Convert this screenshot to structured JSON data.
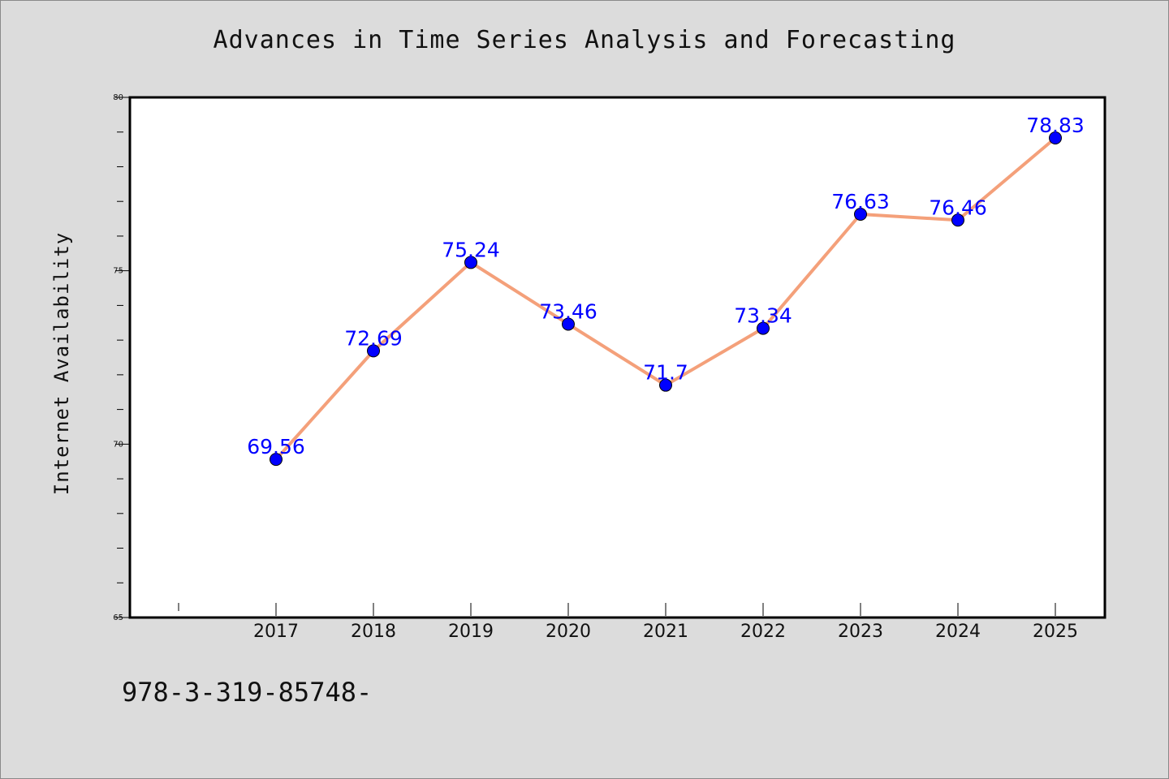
{
  "title": "Advances in Time Series Analysis and Forecasting",
  "footer_text": "978-3-319-85748-",
  "chart_data": {
    "type": "line",
    "title": "Advances in Time Series Analysis and Forecasting",
    "xlabel": "",
    "ylabel": "Internet Availability",
    "categories": [
      "2017",
      "2018",
      "2019",
      "2020",
      "2021",
      "2022",
      "2023",
      "2024",
      "2025"
    ],
    "series": [
      {
        "values": [
          69.56,
          72.69,
          75.24,
          73.46,
          71.7,
          73.34,
          76.63,
          76.46,
          78.83
        ],
        "data_labels": [
          "69.56",
          "72.69",
          "75.24",
          "73.46",
          "71.7",
          "73.34",
          "76.63",
          "76.46",
          "78.83"
        ],
        "line_color": "#f4a07a",
        "marker_color": "#0000ff"
      }
    ],
    "ylim": [
      65,
      80
    ],
    "yticks": [
      "65",
      "70",
      "75",
      "80"
    ],
    "grid": false,
    "legend": "none",
    "colors": {
      "plot_background": "#ffffff",
      "figure_background": "#dcdcdc",
      "label_color": "#0000ff"
    }
  }
}
